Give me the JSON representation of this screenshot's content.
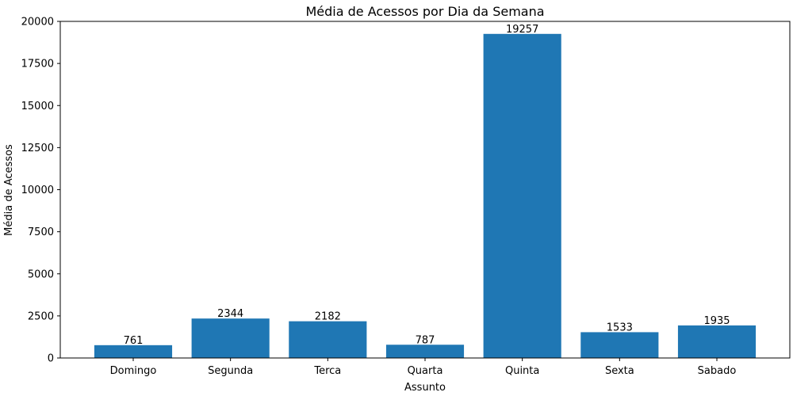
{
  "chart_data": {
    "type": "bar",
    "title": "Média de Acessos por Dia da Semana",
    "xlabel": "Assunto",
    "ylabel": "Média de Acessos",
    "categories": [
      "Domingo",
      "Segunda",
      "Terca",
      "Quarta",
      "Quinta",
      "Sexta",
      "Sabado"
    ],
    "values": [
      761,
      2344,
      2182,
      787,
      19257,
      1533,
      1935
    ],
    "data_labels": [
      "761",
      "2344",
      "2182",
      "787",
      "19257",
      "1533",
      "1935"
    ],
    "ylim": [
      0,
      20000
    ],
    "yticks": [
      0,
      2500,
      5000,
      7500,
      10000,
      12500,
      15000,
      17500,
      20000
    ],
    "grid": false,
    "legend": "none",
    "colors": {
      "bar": "#1f77b4",
      "axis": "#000000",
      "background": "#ffffff"
    }
  }
}
